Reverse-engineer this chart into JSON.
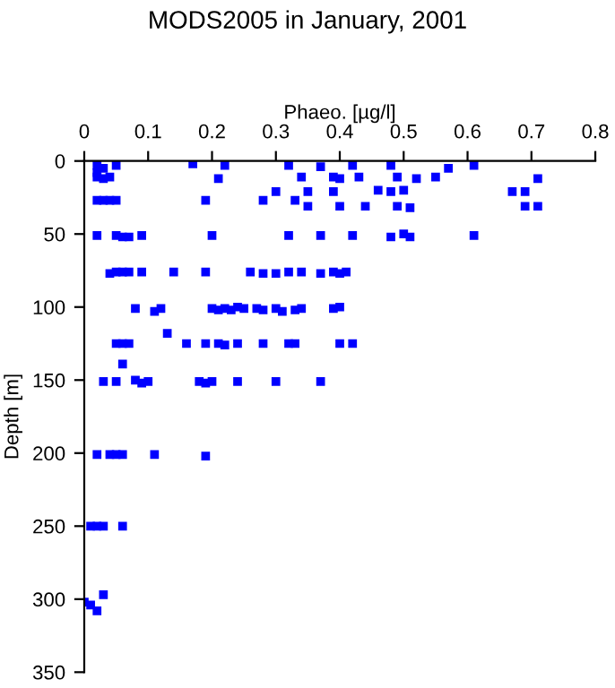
{
  "chart_data": {
    "type": "scatter",
    "title": "MODS2005 in January, 2001",
    "xlabel": "Phaeo. [µg/l]",
    "ylabel": "Depth [m]",
    "xlim": [
      0,
      0.8
    ],
    "xticks": [
      0,
      0.1,
      0.2,
      0.3,
      0.4,
      0.5,
      0.6,
      0.7,
      0.8
    ],
    "ylim": [
      350,
      0
    ],
    "yticks": [
      0,
      50,
      100,
      150,
      200,
      250,
      300,
      350
    ],
    "marker": "square",
    "grid": false,
    "series": [
      {
        "color": "#0000ff",
        "x": [
          0.02,
          0.02,
          0.03,
          0.05,
          0.17,
          0.22,
          0.32,
          0.37,
          0.42,
          0.48,
          0.57,
          0.61,
          0.02,
          0.03,
          0.04,
          0.21,
          0.34,
          0.39,
          0.4,
          0.43,
          0.49,
          0.52,
          0.55,
          0.71,
          0.3,
          0.35,
          0.39,
          0.46,
          0.48,
          0.5,
          0.67,
          0.69,
          0.02,
          0.03,
          0.04,
          0.05,
          0.19,
          0.28,
          0.33,
          0.35,
          0.4,
          0.44,
          0.49,
          0.51,
          0.69,
          0.71,
          0.02,
          0.05,
          0.06,
          0.07,
          0.09,
          0.2,
          0.32,
          0.37,
          0.42,
          0.48,
          0.5,
          0.51,
          0.61,
          0.04,
          0.05,
          0.06,
          0.07,
          0.09,
          0.14,
          0.19,
          0.26,
          0.28,
          0.3,
          0.32,
          0.34,
          0.37,
          0.39,
          0.4,
          0.41,
          0.08,
          0.11,
          0.12,
          0.2,
          0.21,
          0.22,
          0.23,
          0.24,
          0.25,
          0.27,
          0.28,
          0.3,
          0.31,
          0.33,
          0.34,
          0.39,
          0.4,
          0.13,
          0.05,
          0.06,
          0.07,
          0.16,
          0.19,
          0.21,
          0.22,
          0.24,
          0.28,
          0.32,
          0.33,
          0.4,
          0.42,
          0.06,
          0.03,
          0.05,
          0.08,
          0.09,
          0.1,
          0.18,
          0.19,
          0.2,
          0.24,
          0.3,
          0.37,
          0.02,
          0.04,
          0.05,
          0.06,
          0.11,
          0.19,
          0.01,
          0.02,
          0.03,
          0.06,
          0.0,
          0.01,
          0.02,
          0.03
        ],
        "values": [
          3,
          8,
          5,
          3,
          2,
          3,
          3,
          4,
          3,
          3,
          5,
          3,
          11,
          12,
          11,
          12,
          11,
          11,
          12,
          11,
          11,
          12,
          11,
          12,
          21,
          21,
          21,
          20,
          21,
          20,
          21,
          21,
          27,
          27,
          27,
          27,
          27,
          27,
          27,
          31,
          31,
          31,
          31,
          32,
          31,
          31,
          51,
          51,
          52,
          52,
          51,
          51,
          51,
          51,
          51,
          52,
          50,
          52,
          51,
          77,
          76,
          76,
          76,
          76,
          76,
          76,
          76,
          77,
          77,
          76,
          76,
          77,
          76,
          77,
          76,
          101,
          103,
          101,
          101,
          102,
          101,
          102,
          100,
          101,
          101,
          102,
          101,
          103,
          102,
          101,
          101,
          100,
          118,
          125,
          125,
          125,
          125,
          125,
          125,
          126,
          125,
          125,
          125,
          125,
          125,
          125,
          139,
          151,
          151,
          150,
          152,
          151,
          151,
          152,
          151,
          151,
          151,
          151,
          201,
          201,
          201,
          201,
          201,
          202,
          250,
          250,
          250,
          250,
          302,
          304,
          308,
          297
        ]
      }
    ]
  }
}
